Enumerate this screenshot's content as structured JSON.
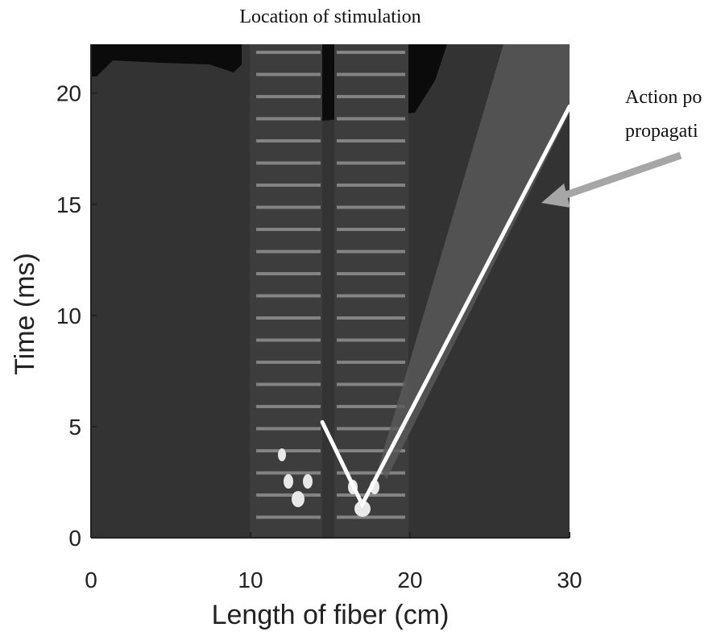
{
  "chart_data": {
    "type": "heatmap",
    "title": "Location of stimulation",
    "x_label": "Length of fiber (cm)",
    "y_label": "Time (ms)",
    "annotation": [
      "Action po",
      "propagati"
    ],
    "xlim": [
      0,
      30
    ],
    "ylim": [
      0,
      22.2
    ],
    "xticks": [
      0,
      10,
      20,
      30
    ],
    "yticks": [
      0,
      5,
      10,
      15,
      20
    ],
    "series": [
      {
        "x": [
          14.5,
          17,
          30
        ],
        "values": [
          5.2,
          1.5,
          19.4
        ],
        "color": "#ffffff"
      }
    ]
  }
}
